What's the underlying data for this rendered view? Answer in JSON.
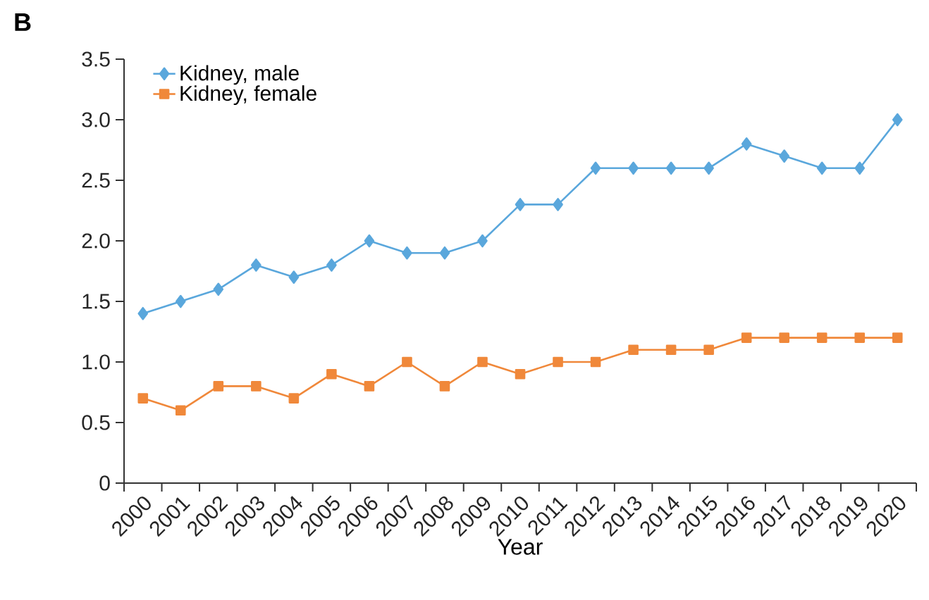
{
  "chart_data": {
    "type": "line",
    "annotations": [
      "B"
    ],
    "xlabel": "Year",
    "categories": [
      "2000",
      "2001",
      "2002",
      "2003",
      "2004",
      "2005",
      "2006",
      "2007",
      "2008",
      "2009",
      "2010",
      "2011",
      "2012",
      "2013",
      "2014",
      "2015",
      "2016",
      "2017",
      "2018",
      "2019",
      "2020"
    ],
    "series": [
      {
        "name": "Kidney, male",
        "color": "#5aa7dc",
        "marker": "diamond",
        "values": [
          1.4,
          1.5,
          1.6,
          1.8,
          1.7,
          1.8,
          2.0,
          1.9,
          1.9,
          2.0,
          2.3,
          2.3,
          2.6,
          2.6,
          2.6,
          2.6,
          2.8,
          2.7,
          2.6,
          2.6,
          3.0
        ]
      },
      {
        "name": "Kidney, female",
        "color": "#f0883a",
        "marker": "square",
        "values": [
          0.7,
          0.6,
          0.8,
          0.8,
          0.7,
          0.9,
          0.8,
          1.0,
          0.8,
          1.0,
          0.9,
          1.0,
          1.0,
          1.1,
          1.1,
          1.1,
          1.2,
          1.2,
          1.2,
          1.2,
          1.2
        ]
      }
    ],
    "ylim": [
      0,
      3.5
    ],
    "yticks": [
      0,
      0.5,
      {
        "value": 1,
        "label": "1.0"
      },
      1.5,
      {
        "value": 2,
        "label": "2.0"
      },
      2.5,
      {
        "value": 3,
        "label": "3.0"
      },
      3.5
    ],
    "grid": false,
    "legend": "top left",
    "line_style": "solid"
  }
}
